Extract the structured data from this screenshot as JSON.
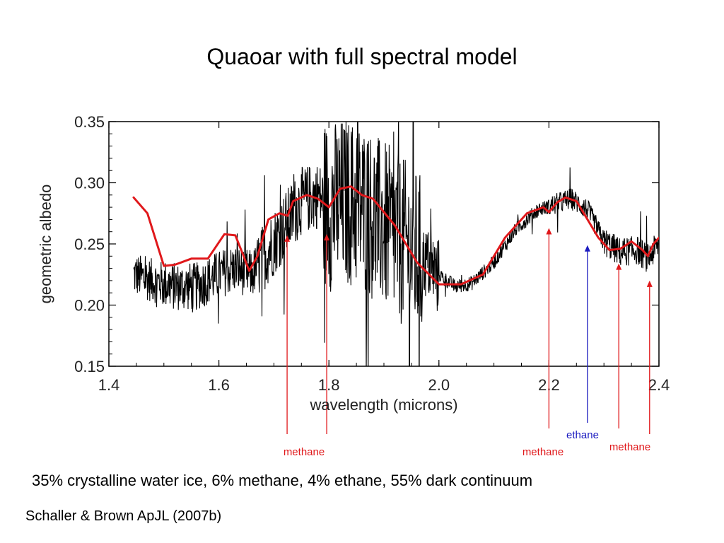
{
  "slide": {
    "title": "Quaoar with full spectral model",
    "composition": "35% crystalline water ice, 6% methane, 4% ethane, 55% dark continuum",
    "citation": "Schaller & Brown ApJL (2007b)"
  },
  "chart_data": {
    "type": "line",
    "xlabel": "wavelength (microns)",
    "ylabel": "geometric albedo",
    "xlim": [
      1.4,
      2.4
    ],
    "ylim": [
      0.15,
      0.35
    ],
    "xticks": [
      "1.4",
      "1.6",
      "1.8",
      "2.0",
      "2.2",
      "2.4"
    ],
    "yticks": [
      "0.15",
      "0.20",
      "0.25",
      "0.30",
      "0.35"
    ],
    "grid": false,
    "series": [
      {
        "role": "observed",
        "color": "#000000",
        "x": [
          1.445,
          1.48,
          1.52,
          1.56,
          1.6,
          1.63,
          1.66,
          1.69,
          1.72,
          1.75,
          1.78,
          1.8,
          1.83,
          1.86,
          1.9,
          1.95,
          2.0,
          2.03,
          2.06,
          2.1,
          2.14,
          2.18,
          2.21,
          2.24,
          2.27,
          2.3,
          2.33,
          2.36,
          2.38,
          2.4
        ],
        "y": [
          0.225,
          0.22,
          0.215,
          0.215,
          0.225,
          0.23,
          0.225,
          0.245,
          0.265,
          0.285,
          0.29,
          0.28,
          0.285,
          0.28,
          0.265,
          0.245,
          0.225,
          0.215,
          0.218,
          0.235,
          0.262,
          0.278,
          0.282,
          0.287,
          0.278,
          0.252,
          0.243,
          0.245,
          0.238,
          0.25
        ]
      },
      {
        "role": "model",
        "color": "#e0181b",
        "x": [
          1.445,
          1.47,
          1.5,
          1.52,
          1.55,
          1.58,
          1.61,
          1.63,
          1.645,
          1.655,
          1.67,
          1.69,
          1.71,
          1.725,
          1.735,
          1.76,
          1.78,
          1.8,
          1.82,
          1.84,
          1.86,
          1.88,
          1.92,
          1.96,
          2.0,
          2.04,
          2.08,
          2.12,
          2.16,
          2.19,
          2.2,
          2.215,
          2.23,
          2.25,
          2.27,
          2.29,
          2.31,
          2.33,
          2.35,
          2.37,
          2.38,
          2.39,
          2.4
        ],
        "y": [
          0.288,
          0.275,
          0.232,
          0.233,
          0.238,
          0.238,
          0.258,
          0.257,
          0.24,
          0.228,
          0.24,
          0.27,
          0.275,
          0.273,
          0.285,
          0.29,
          0.287,
          0.28,
          0.295,
          0.297,
          0.29,
          0.287,
          0.265,
          0.235,
          0.217,
          0.217,
          0.225,
          0.255,
          0.275,
          0.28,
          0.276,
          0.284,
          0.288,
          0.285,
          0.27,
          0.255,
          0.245,
          0.246,
          0.252,
          0.245,
          0.24,
          0.25,
          0.255
        ]
      }
    ],
    "annotations": [
      {
        "label": "methane",
        "x": 1.724,
        "tip_y": 0.257,
        "color": "#e0181b",
        "show_label": false
      },
      {
        "label": "methane",
        "x": 1.796,
        "tip_y": 0.258,
        "color": "#e0181b",
        "show_label": true
      },
      {
        "label": "methane",
        "x": 2.2,
        "tip_y": 0.263,
        "color": "#e0181b",
        "show_label": true
      },
      {
        "label": "ethane",
        "x": 2.27,
        "tip_y": 0.249,
        "color": "#1c1cc0",
        "show_label": true
      },
      {
        "label": "methane",
        "x": 2.327,
        "tip_y": 0.234,
        "color": "#e0181b",
        "show_label": true
      },
      {
        "label": "methane",
        "x": 2.383,
        "tip_y": 0.22,
        "color": "#e0181b",
        "show_label": false
      }
    ]
  }
}
